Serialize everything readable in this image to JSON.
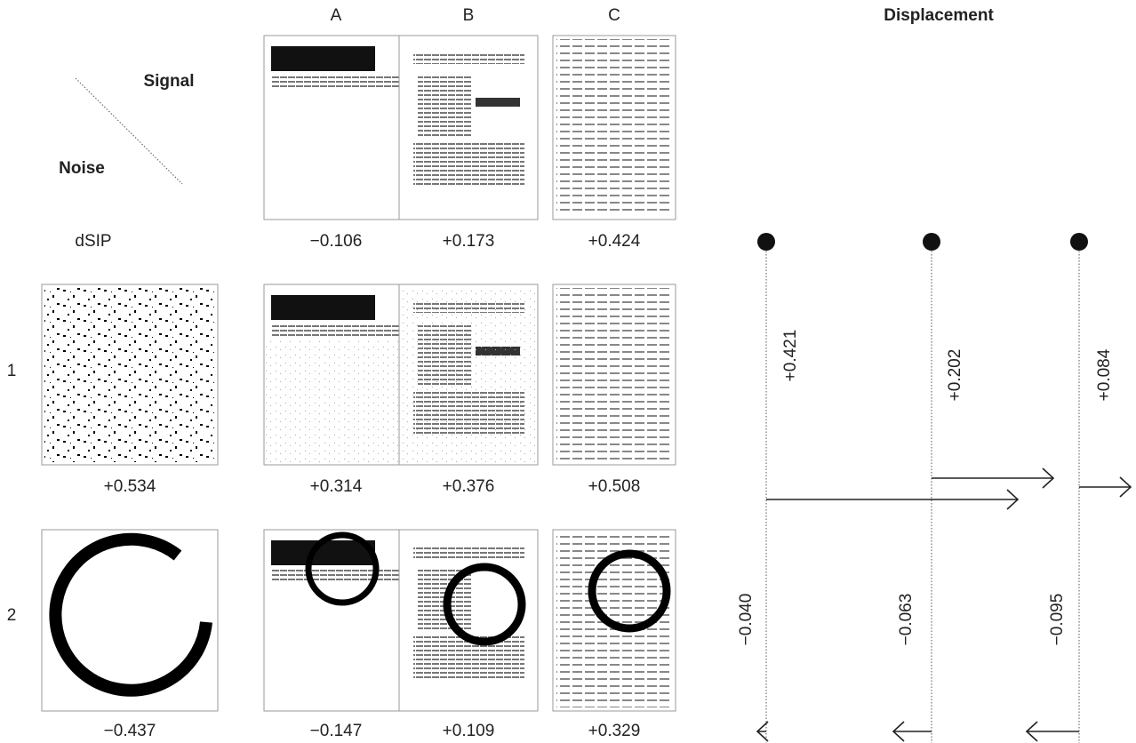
{
  "columns": [
    "A",
    "B",
    "C"
  ],
  "corner": {
    "signal": "Signal",
    "noise": "Noise"
  },
  "row_header": "dSIP",
  "signal_scores": [
    "−0.106",
    "+0.173",
    "+0.424"
  ],
  "rows": [
    {
      "label": "1",
      "noise_score": "+0.534",
      "scores": [
        "+0.314",
        "+0.376",
        "+0.508"
      ]
    },
    {
      "label": "2",
      "noise_score": "−0.437",
      "scores": [
        "−0.147",
        "+0.109",
        "+0.329"
      ]
    }
  ],
  "displacement": {
    "title": "Displacement",
    "columns": [
      {
        "up": "+0.421",
        "down": "−0.040"
      },
      {
        "up": "+0.202",
        "down": "−0.063"
      },
      {
        "up": "+0.084",
        "down": "−0.095"
      }
    ]
  }
}
